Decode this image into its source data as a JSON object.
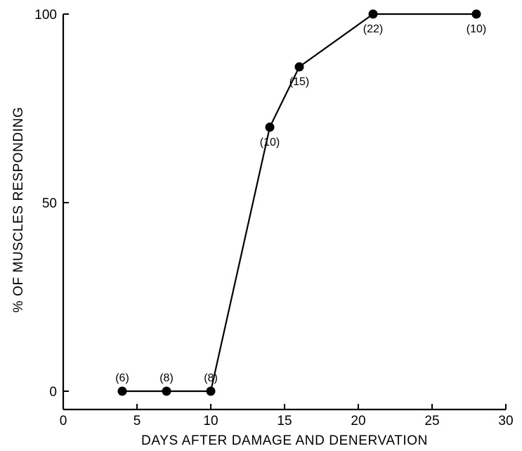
{
  "chart_data": {
    "type": "line",
    "title": "",
    "xlabel": "DAYS AFTER DAMAGE AND DENERVATION",
    "ylabel": "% OF MUSCLES RESPONDING",
    "xlim": [
      0,
      30
    ],
    "ylim": [
      0,
      100
    ],
    "x_ticks": [
      0,
      5,
      10,
      15,
      20,
      25,
      30
    ],
    "y_ticks": [
      0,
      50,
      100
    ],
    "x_tick_labels": [
      "0",
      "5",
      "10",
      "15",
      "20",
      "25",
      "30"
    ],
    "y_tick_labels": [
      "0",
      "50",
      "100"
    ],
    "grid": false,
    "series": [
      {
        "x": [
          4,
          7,
          10,
          14,
          16,
          21,
          28
        ],
        "y": [
          0,
          0,
          0,
          70,
          86,
          100,
          100
        ],
        "labels": [
          "(6)",
          "(8)",
          "(8)",
          "(10)",
          "(15)",
          "(22)",
          "(10)"
        ],
        "label_positions": [
          "above",
          "above",
          "above",
          "below",
          "below",
          "below",
          "below"
        ]
      }
    ]
  }
}
